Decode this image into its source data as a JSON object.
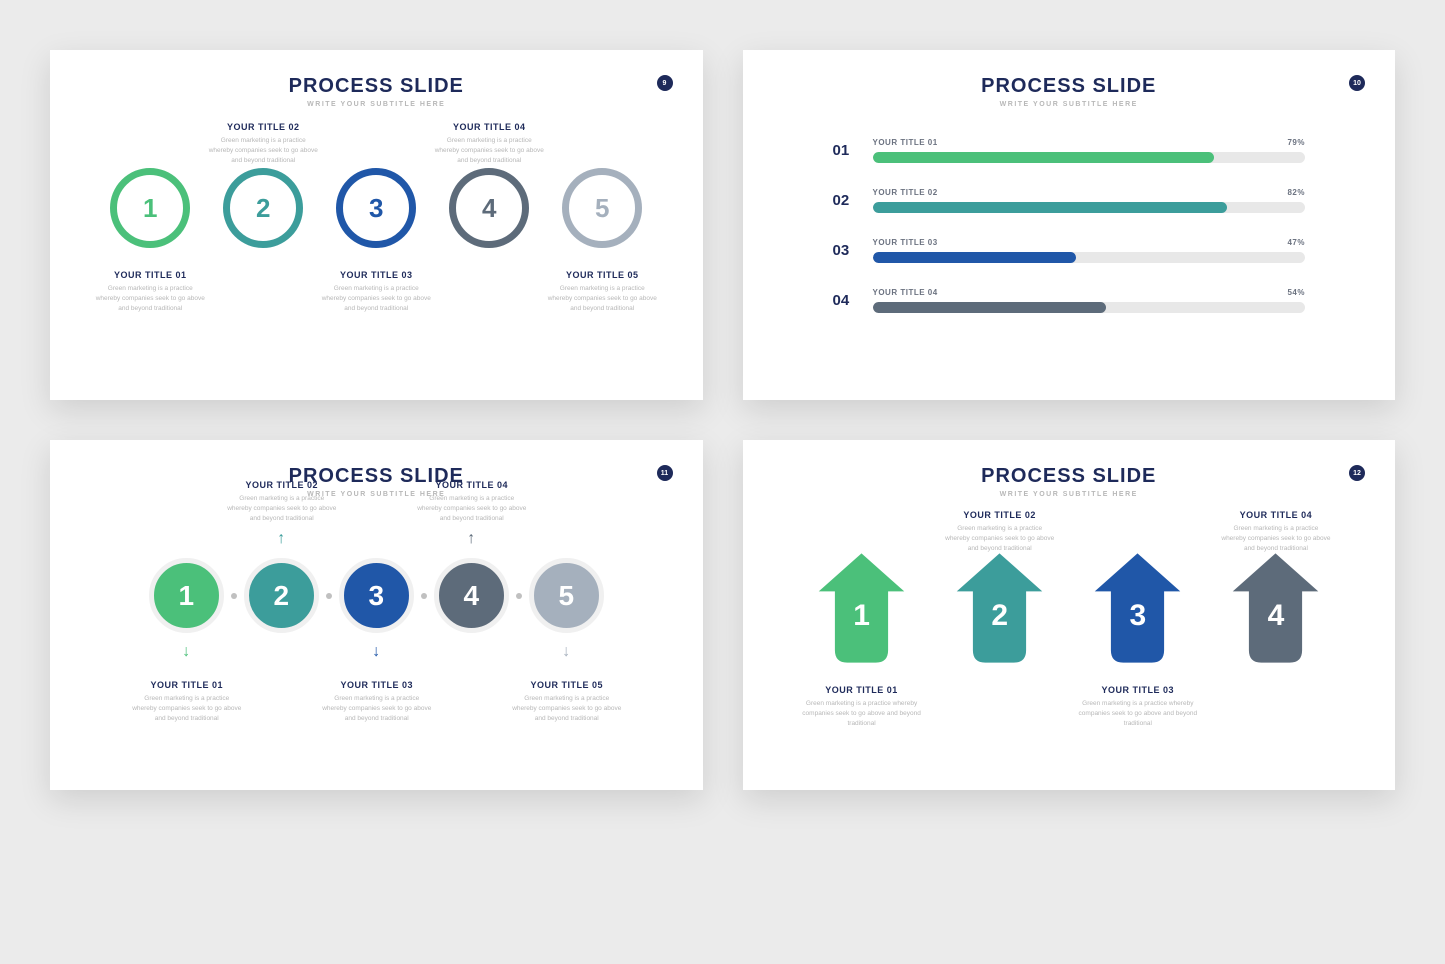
{
  "common": {
    "title": "PROCESS SLIDE",
    "subtitle": "WRITE YOUR SUBTITLE HERE",
    "desc": "Green marketing is a practice whereby companies seek to go above and beyond traditional"
  },
  "colors": [
    "#4bc07a",
    "#3c9d9b",
    "#2057a8",
    "#5d6b7a",
    "#a5b0bd"
  ],
  "slide1": {
    "badge": "9",
    "items": [
      {
        "n": "1",
        "t": "YOUR TITLE 01",
        "pos": "dn"
      },
      {
        "n": "2",
        "t": "YOUR TITLE 02",
        "pos": "up"
      },
      {
        "n": "3",
        "t": "YOUR TITLE 03",
        "pos": "dn"
      },
      {
        "n": "4",
        "t": "YOUR TITLE 04",
        "pos": "up"
      },
      {
        "n": "5",
        "t": "YOUR TITLE 05",
        "pos": "dn"
      }
    ]
  },
  "slide2": {
    "badge": "10",
    "bars": [
      {
        "n": "01",
        "t": "YOUR TITLE 01",
        "v": 79
      },
      {
        "n": "02",
        "t": "YOUR TITLE 02",
        "v": 82
      },
      {
        "n": "03",
        "t": "YOUR TITLE 03",
        "v": 47
      },
      {
        "n": "04",
        "t": "YOUR TITLE 04",
        "v": 54
      }
    ]
  },
  "slide3": {
    "badge": "11",
    "items": [
      {
        "n": "1",
        "t": "YOUR TITLE 01",
        "pos": "dn"
      },
      {
        "n": "2",
        "t": "YOUR TITLE 02",
        "pos": "up"
      },
      {
        "n": "3",
        "t": "YOUR TITLE 03",
        "pos": "dn"
      },
      {
        "n": "4",
        "t": "YOUR TITLE 04",
        "pos": "up"
      },
      {
        "n": "5",
        "t": "YOUR TITLE 05",
        "pos": "dn"
      }
    ]
  },
  "slide4": {
    "badge": "12",
    "items": [
      {
        "n": "1",
        "t": "YOUR TITLE 01",
        "pos": "dn"
      },
      {
        "n": "2",
        "t": "YOUR TITLE 02",
        "pos": "up"
      },
      {
        "n": "3",
        "t": "YOUR TITLE 03",
        "pos": "dn"
      },
      {
        "n": "4",
        "t": "YOUR TITLE 04",
        "pos": "up"
      }
    ]
  }
}
